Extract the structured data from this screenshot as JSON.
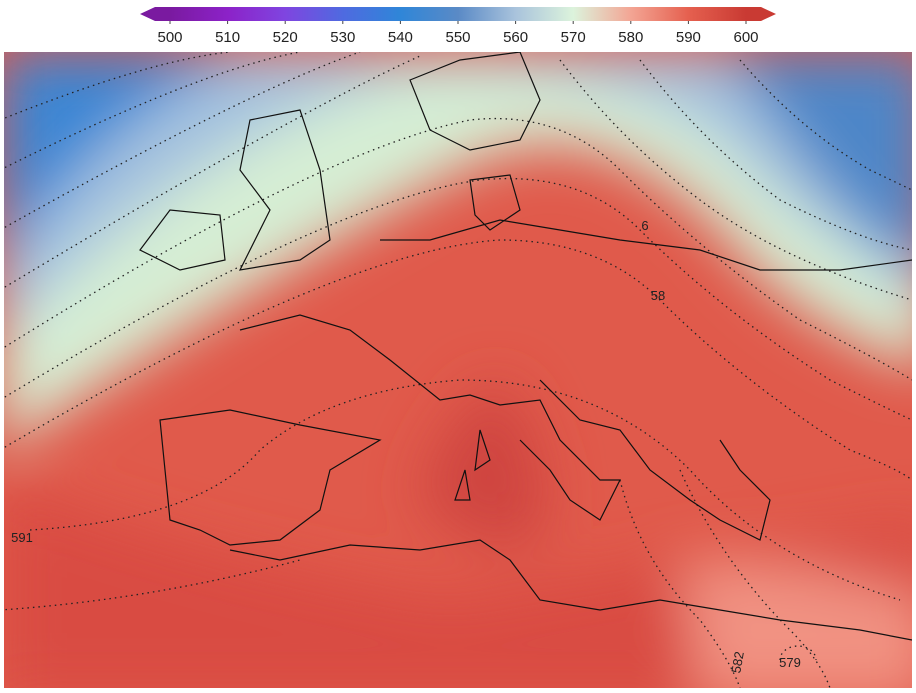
{
  "colorbar": {
    "lim": [
      500,
      600
    ],
    "ticks": [
      500,
      510,
      520,
      530,
      540,
      550,
      560,
      570,
      580,
      590,
      600
    ],
    "colors": [
      "#7a1aa0",
      "#8c22c8",
      "#7f45e0",
      "#4f6ae0",
      "#2f86d8",
      "#5a8ac6",
      "#a9c3dc",
      "#dcf3dc",
      "#f3a594",
      "#e5604f",
      "#c93a33"
    ]
  },
  "contour_labels": [
    "591",
    "582",
    "579",
    "58",
    "6"
  ]
}
